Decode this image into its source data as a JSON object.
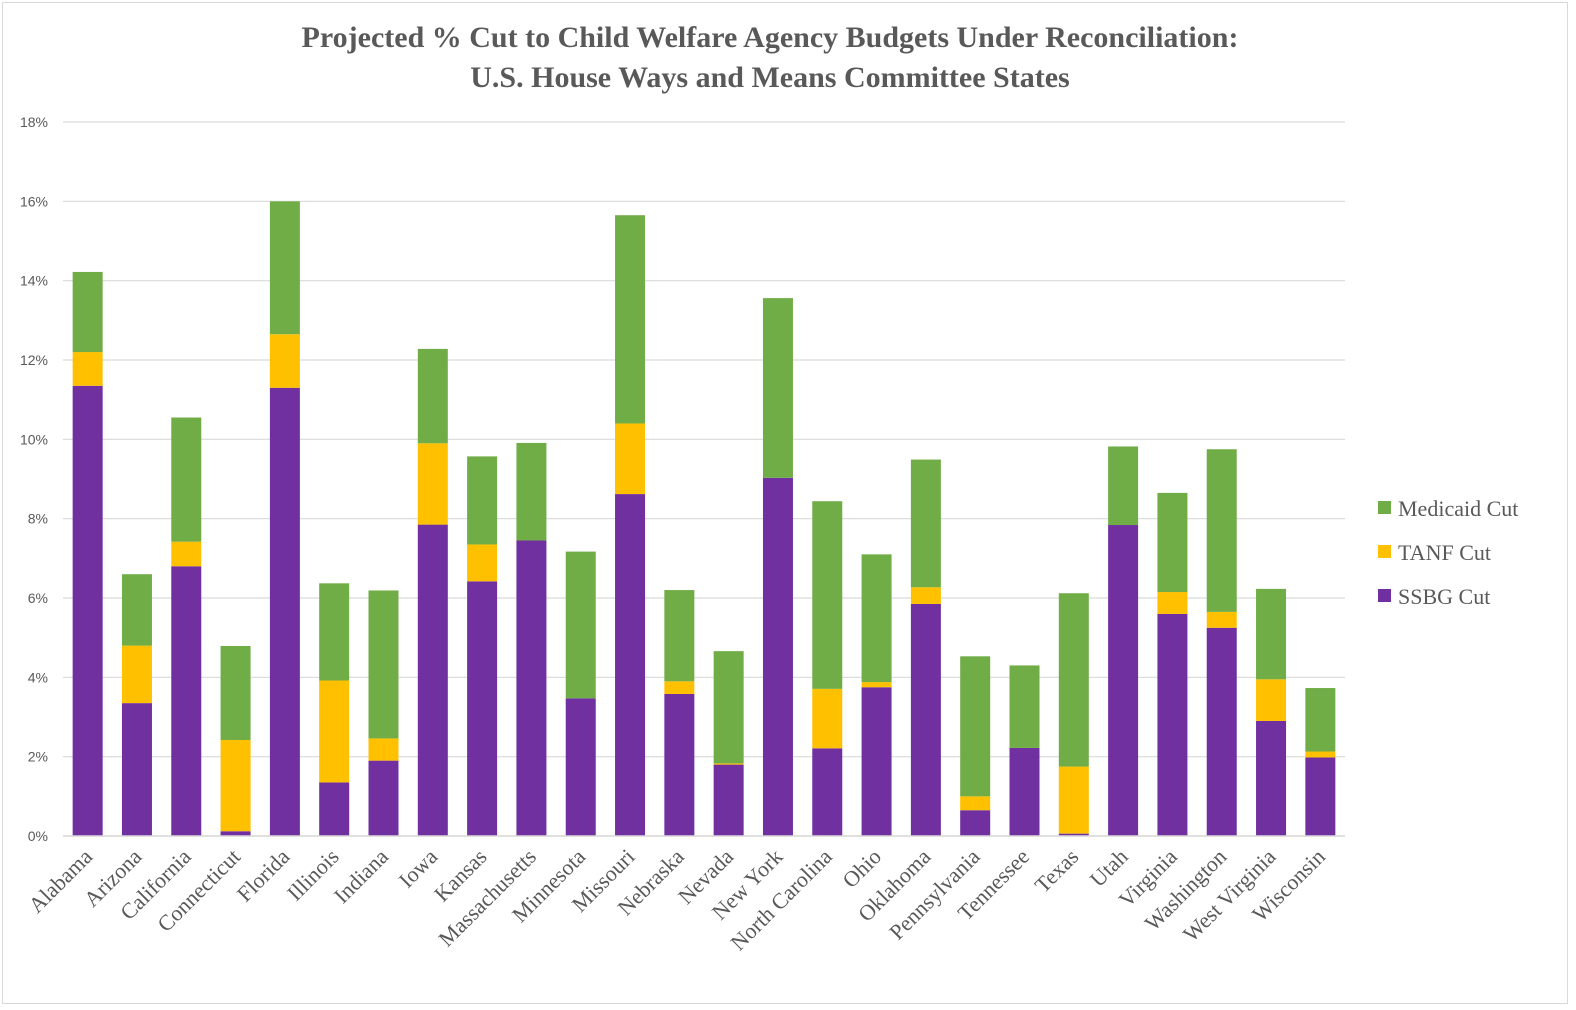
{
  "chart_data": {
    "type": "bar",
    "stacked": true,
    "title_lines": [
      "Projected % Cut to Child Welfare Agency Budgets Under Reconciliation:",
      "U.S. House Ways and Means Committee States"
    ],
    "categories": [
      "Alabama",
      "Arizona",
      "California",
      "Connecticut",
      "Florida",
      "Illinois",
      "Indiana",
      "Iowa",
      "Kansas",
      "Massachusetts",
      "Minnesota",
      "Missouri",
      "Nebraska",
      "Nevada",
      "New York",
      "North Carolina",
      "Ohio",
      "Oklahoma",
      "Pennsylvania",
      "Tennessee",
      "Texas",
      "Utah",
      "Virginia",
      "Washington",
      "West Virginia",
      "Wisconsin"
    ],
    "series": [
      {
        "name": "SSBG Cut",
        "color": "#7030a0",
        "values": [
          11.35,
          3.35,
          6.8,
          0.12,
          11.3,
          1.35,
          1.9,
          7.85,
          6.42,
          7.45,
          3.47,
          8.62,
          3.58,
          1.8,
          9.03,
          2.21,
          3.75,
          5.85,
          0.65,
          2.22,
          0.06,
          7.84,
          5.6,
          5.25,
          2.9,
          1.98
        ]
      },
      {
        "name": "TANF Cut",
        "color": "#ffc000",
        "values": [
          0.85,
          1.45,
          0.62,
          2.3,
          1.35,
          2.57,
          0.56,
          2.05,
          0.93,
          0.0,
          0.0,
          1.78,
          0.32,
          0.03,
          0.0,
          1.5,
          0.13,
          0.42,
          0.35,
          0.0,
          1.69,
          0.0,
          0.55,
          0.4,
          1.05,
          0.15
        ]
      },
      {
        "name": "Medicaid Cut",
        "color": "#70ad47",
        "values": [
          2.02,
          1.8,
          3.13,
          2.37,
          3.35,
          2.45,
          3.73,
          2.38,
          2.22,
          2.46,
          3.7,
          5.25,
          2.3,
          2.83,
          4.53,
          4.73,
          3.22,
          3.22,
          3.53,
          2.08,
          4.37,
          1.98,
          2.5,
          4.1,
          2.28,
          1.6
        ]
      }
    ],
    "ylim": [
      0,
      18
    ],
    "yticks": [
      0,
      2,
      4,
      6,
      8,
      10,
      12,
      14,
      16,
      18
    ],
    "ytick_labels": [
      "0%",
      "2%",
      "4%",
      "6%",
      "8%",
      "10%",
      "12%",
      "14%",
      "16%",
      "18%"
    ],
    "grid": true,
    "gridline_color": "#d9d9d9",
    "legend": {
      "position": "right",
      "entries": [
        {
          "label": "Medicaid Cut",
          "color": "#70ad47"
        },
        {
          "label": "TANF Cut",
          "color": "#ffc000"
        },
        {
          "label": "SSBG Cut",
          "color": "#7030a0"
        }
      ]
    }
  }
}
